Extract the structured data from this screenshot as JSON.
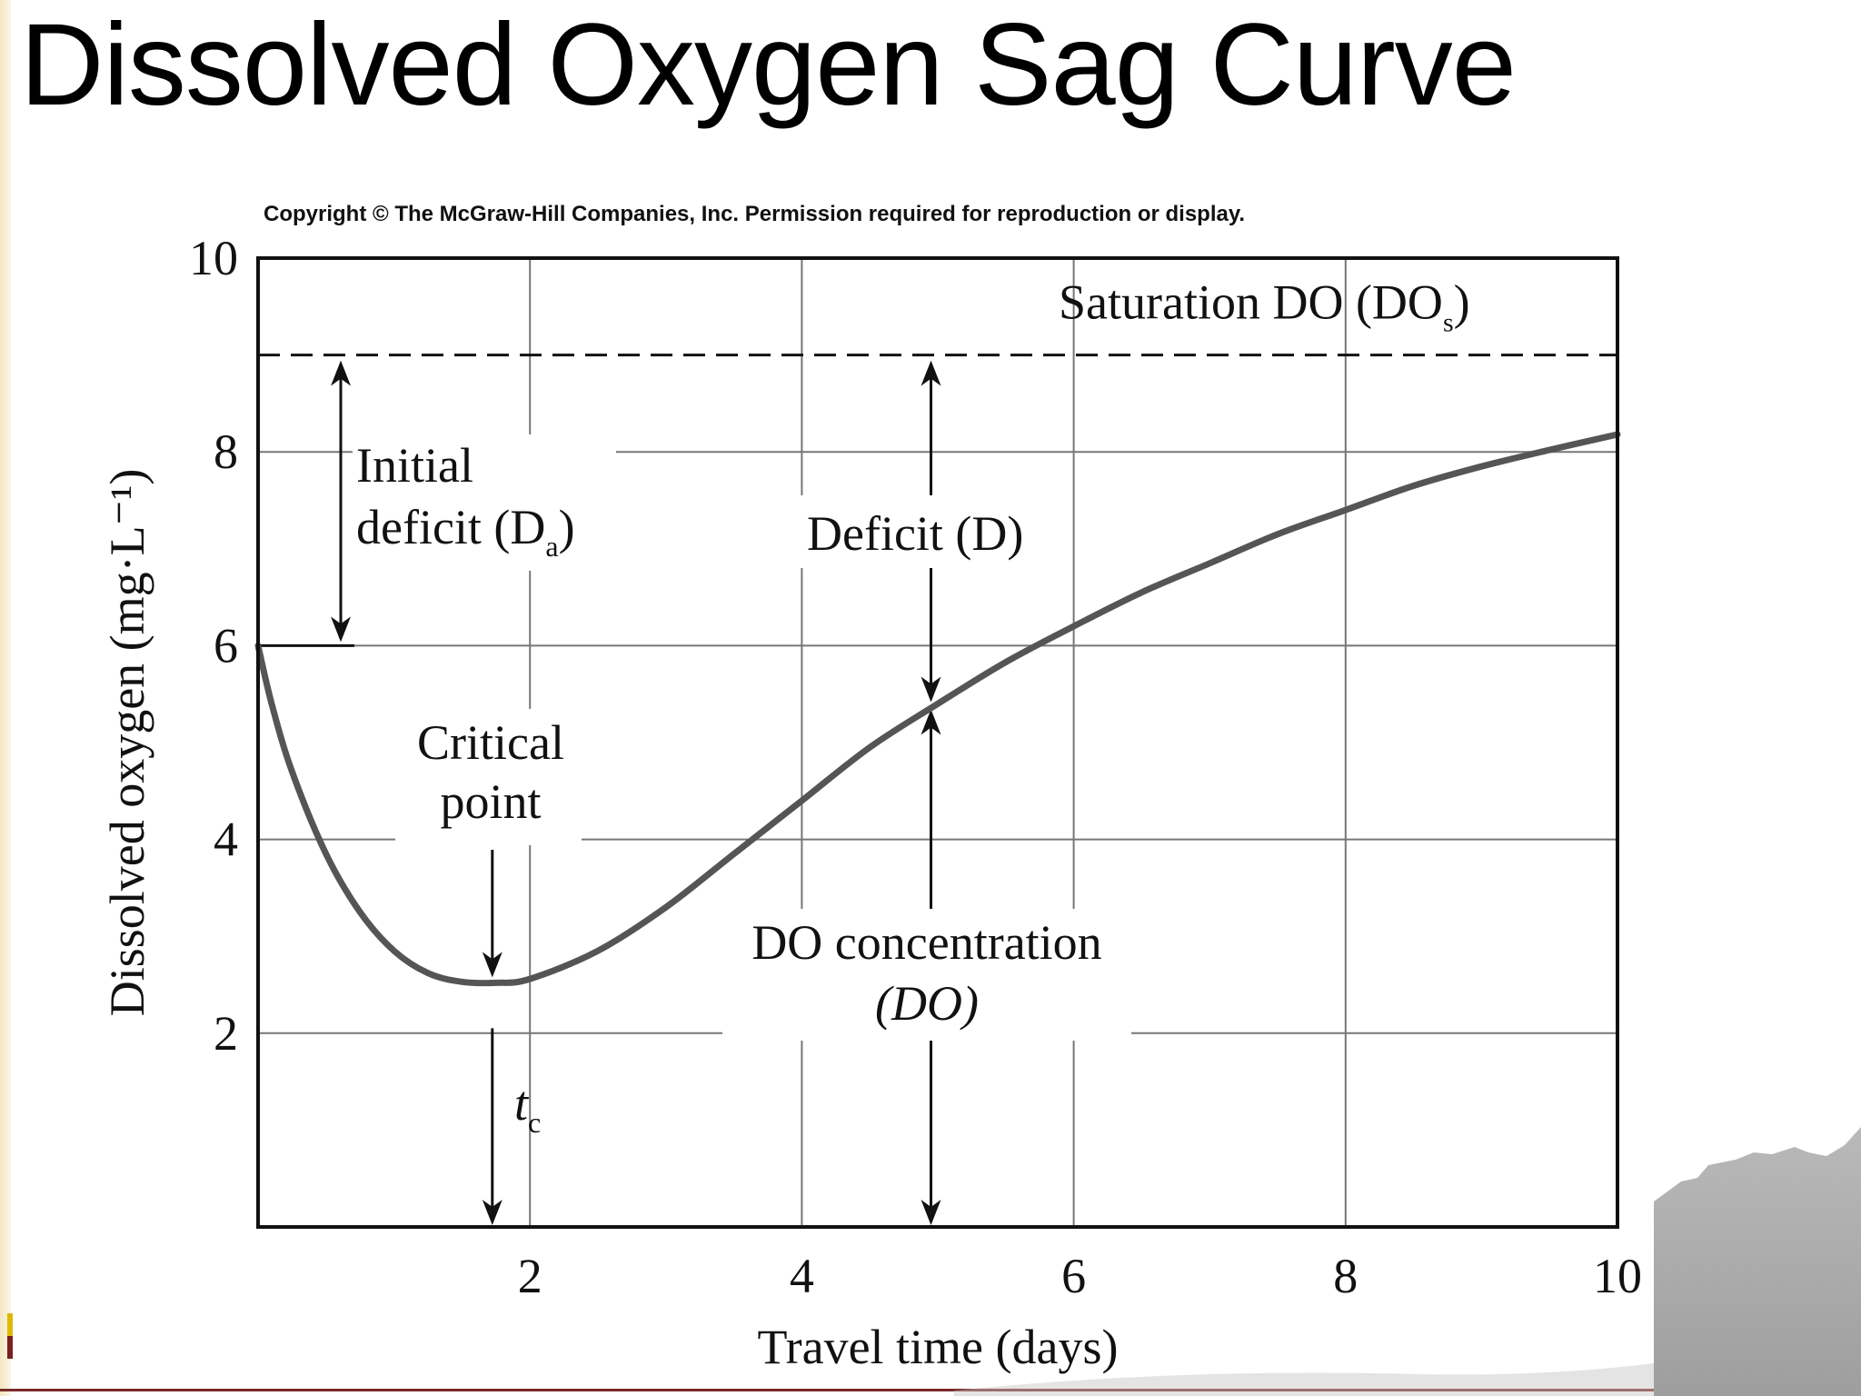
{
  "slide": {
    "title": "Dissolved Oxygen Sag Curve",
    "copyright": "Copyright © The McGraw-Hill Companies, Inc. Permission required for reproduction or display."
  },
  "chart_data": {
    "type": "line",
    "xlabel": "Travel time (days)",
    "ylabel": "Dissolved oxygen (mg·L⁻¹)",
    "xlim": [
      0,
      10
    ],
    "ylim": [
      0,
      10
    ],
    "x_ticks": [
      "2",
      "4",
      "6",
      "8",
      "10"
    ],
    "y_ticks": [
      "2",
      "4",
      "6",
      "8",
      "10"
    ],
    "grid": true,
    "saturation_do": 9.0,
    "saturation_label": "Saturation DO (DO",
    "saturation_label_sub": "s",
    "saturation_label_close": ")",
    "series": [
      {
        "x": [
          0,
          0.1,
          0.25,
          0.5,
          0.75,
          1.0,
          1.25,
          1.5,
          1.75,
          2.0,
          2.5,
          3.0,
          3.5,
          4.0,
          4.5,
          5.0,
          5.5,
          6.0,
          6.5,
          7.0,
          7.5,
          8.0,
          8.5,
          9.0,
          9.5,
          10.0
        ],
        "y": [
          6.0,
          5.4,
          4.7,
          3.85,
          3.25,
          2.85,
          2.62,
          2.53,
          2.52,
          2.56,
          2.85,
          3.3,
          3.85,
          4.4,
          4.95,
          5.4,
          5.83,
          6.2,
          6.55,
          6.85,
          7.15,
          7.4,
          7.65,
          7.85,
          8.02,
          8.18
        ]
      }
    ],
    "annotations": {
      "initial_deficit_line1": "Initial",
      "initial_deficit_line2": "deficit (D",
      "initial_deficit_sub": "a",
      "initial_deficit_close": ")",
      "deficit_label": "Deficit (D)",
      "critical_line1": "Critical",
      "critical_line2": "point",
      "tc_label": "t",
      "tc_sub": "c",
      "do_conc_line1": "DO concentration",
      "do_conc_line2": "(DO)"
    },
    "initial_do": 6.0,
    "critical_time": 1.75,
    "critical_do": 2.52,
    "deficit_time": 4.95,
    "deficit_do": 5.38
  }
}
